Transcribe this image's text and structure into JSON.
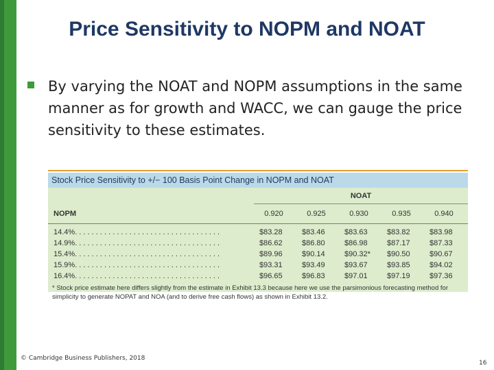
{
  "slide": {
    "title": "Price Sensitivity to NOPM and NOAT",
    "bullet": "By varying the NOAT and NOPM assumptions in the same manner as for growth and WACC, we can gauge the price sensitivity to these estimates.",
    "copyright": "© Cambridge Business Publishers, 2018",
    "page_number": "16",
    "accent_color": "#3f9a3b",
    "title_color": "#1f3864"
  },
  "exhibit": {
    "header": "Stock Price Sensitivity to +/− 100 Basis Point Change in NOPM and NOAT",
    "group_label": "NOAT",
    "row_header": "NOPM",
    "columns": [
      "0.920",
      "0.925",
      "0.930",
      "0.935",
      "0.940"
    ],
    "rows": [
      {
        "label": "14.4%. . . . . . . . . . . . . . . . . . . . . . . . . . . . . . . . . . .",
        "values": [
          "$83.28",
          "$83.46",
          "$83.63",
          "$83.82",
          "$83.98"
        ]
      },
      {
        "label": "14.9%. . . . . . . . . . . . . . . . . . . . . . . . . . . . . . . . . . .",
        "values": [
          "$86.62",
          "$86.80",
          "$86.98",
          "$87.17",
          "$87.33"
        ]
      },
      {
        "label": "15.4%. . . . . . . . . . . . . . . . . . . . . . . . . . . . . . . . . . .",
        "values": [
          "$89.96",
          "$90.14",
          "$90.32*",
          "$90.50",
          "$90.67"
        ]
      },
      {
        "label": "15.9%. . . . . . . . . . . . . . . . . . . . . . . . . . . . . . . . . . .",
        "values": [
          "$93.31",
          "$93.49",
          "$93.67",
          "$93.85",
          "$94.02"
        ]
      },
      {
        "label": "16.4%. . . . . . . . . . . . . . . . . . . . . . . . . . . . . . . . . . .",
        "values": [
          "$96.65",
          "$96.83",
          "$97.01",
          "$97.19",
          "$97.36"
        ]
      }
    ],
    "footnote": "* Stock price estimate here differs slightly from the estimate in Exhibit 13.3 because here we use the parsimonious forecasting method for simplicity to generate NOPAT and NOA (and to derive free cash flows) as shown in Exhibit 13.2.",
    "header_bg": "#bcd9ea",
    "table_bg": "#dceccc"
  }
}
